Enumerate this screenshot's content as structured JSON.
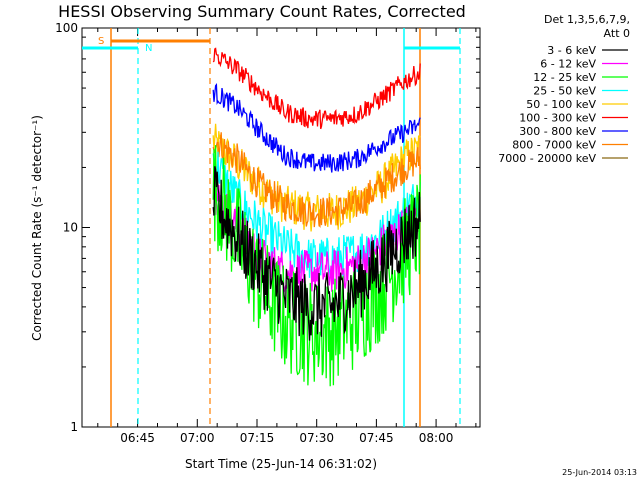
{
  "chart_data": {
    "type": "line",
    "title": "HESSI Observing Summary Count Rates, Corrected",
    "xlabel": "Start Time (25-Jun-14 06:31:02)",
    "ylabel": "Corrected Count Rate (s⁻¹ detector⁻¹)",
    "yscale": "log",
    "ylim": [
      1,
      100
    ],
    "xlim": [
      "06:31:02",
      "08:11:02"
    ],
    "x_ticks": [
      "06:45",
      "07:00",
      "07:15",
      "07:30",
      "07:45",
      "08:00"
    ],
    "y_ticks": [
      "1",
      "10",
      "100"
    ],
    "timestamp": "25-Jun-2014 03:13",
    "legend": {
      "title_lines": [
        "Det 1,3,5,6,7,9,",
        "Att 0"
      ],
      "placement": "right"
    },
    "annotations": [
      {
        "label": "S",
        "color": "#ff7f00"
      },
      {
        "label": "N",
        "color": "#00ffff"
      }
    ],
    "segment": {
      "start": "07:04",
      "end": "07:56"
    },
    "series": [
      {
        "name": "3 - 6 keV",
        "color": "#000000",
        "x": [
          "07:04",
          "07:10",
          "07:16",
          "07:22",
          "07:28",
          "07:34",
          "07:40",
          "07:46",
          "07:52",
          "07:56"
        ],
        "y": [
          14.0,
          9.0,
          6.0,
          4.5,
          4.0,
          4.0,
          5.0,
          6.5,
          9.0,
          11.0
        ]
      },
      {
        "name": "6 - 12 keV",
        "color": "#ff00ff",
        "x": [
          "07:04",
          "07:10",
          "07:16",
          "07:22",
          "07:28",
          "07:34",
          "07:40",
          "07:46",
          "07:52",
          "07:56"
        ],
        "y": [
          15.0,
          10.0,
          7.0,
          6.0,
          6.0,
          6.0,
          6.5,
          8.0,
          10.0,
          12.0
        ]
      },
      {
        "name": "12 - 25 keV",
        "color": "#00ff00",
        "x": [
          "07:04",
          "07:10",
          "07:16",
          "07:22",
          "07:28",
          "07:34",
          "07:40",
          "07:46",
          "07:52",
          "07:56"
        ],
        "y": [
          16.0,
          9.0,
          5.0,
          3.5,
          3.0,
          3.0,
          3.6,
          5.0,
          7.5,
          10.0
        ]
      },
      {
        "name": "25 - 50 keV",
        "color": "#00ffff",
        "x": [
          "07:04",
          "07:10",
          "07:16",
          "07:22",
          "07:28",
          "07:34",
          "07:40",
          "07:46",
          "07:52",
          "07:56"
        ],
        "y": [
          22.0,
          14.0,
          10.0,
          8.0,
          7.0,
          7.0,
          7.5,
          9.0,
          12.0,
          15.0
        ]
      },
      {
        "name": "50 - 100 keV",
        "color": "#ffcc00",
        "x": [
          "07:04",
          "07:10",
          "07:16",
          "07:22",
          "07:28",
          "07:34",
          "07:40",
          "07:46",
          "07:52",
          "07:56"
        ],
        "y": [
          27.0,
          21.0,
          16.0,
          13.0,
          12.0,
          12.0,
          13.0,
          16.0,
          22.0,
          25.0
        ]
      },
      {
        "name": "100 - 300 keV",
        "color": "#ff0000",
        "x": [
          "07:04",
          "07:10",
          "07:16",
          "07:22",
          "07:28",
          "07:34",
          "07:40",
          "07:46",
          "07:52",
          "07:56"
        ],
        "y": [
          75.0,
          62.0,
          48.0,
          38.0,
          35.0,
          35.0,
          37.0,
          44.0,
          54.0,
          60.0
        ]
      },
      {
        "name": "300 - 800 keV",
        "color": "#0000ff",
        "x": [
          "07:04",
          "07:10",
          "07:16",
          "07:22",
          "07:28",
          "07:34",
          "07:40",
          "07:46",
          "07:52",
          "07:56"
        ],
        "y": [
          48.0,
          40.0,
          30.0,
          23.0,
          21.0,
          21.0,
          22.0,
          26.0,
          30.0,
          33.0
        ]
      },
      {
        "name": "800 - 7000 keV",
        "color": "#ff7f00",
        "x": [
          "07:04",
          "07:10",
          "07:16",
          "07:22",
          "07:28",
          "07:34",
          "07:40",
          "07:46",
          "07:52",
          "07:56"
        ],
        "y": [
          28.0,
          22.0,
          16.0,
          13.0,
          12.0,
          12.0,
          13.0,
          16.0,
          20.0,
          22.0
        ]
      },
      {
        "name": "7000 - 20000 keV",
        "color": "#8b6914",
        "x": [],
        "y": []
      }
    ]
  }
}
